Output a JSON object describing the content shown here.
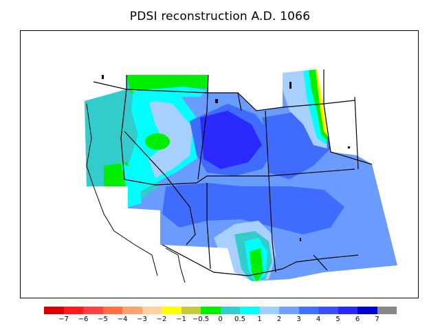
{
  "title": "PDSI reconstruction A.D. 1066",
  "colorbar": {
    "colors": [
      "#d80000",
      "#ff1a1a",
      "#ff4040",
      "#ff7040",
      "#ffa070",
      "#ffd0a0",
      "#ffff00",
      "#c8c83c",
      "#00ee00",
      "#33cccc",
      "#00ffff",
      "#9fcfff",
      "#6fa0ff",
      "#4070ff",
      "#3a50ff",
      "#2828ff",
      "#0000cc",
      "#888888"
    ],
    "tick_labels": [
      "−7",
      "−6",
      "−5",
      "−4",
      "−3",
      "−2",
      "−1",
      "−0.5",
      "0",
      "0.5",
      "1",
      "2",
      "3",
      "4",
      "5",
      "6",
      "7"
    ]
  },
  "legend_colors": {
    "wet_strong": "#2a2aff",
    "wet_mid": "#3f6cff",
    "wet_light": "#6a9bff",
    "wet_pale": "#a7d0ff",
    "near_zero": "#00ffff",
    "slightly_dry": "#33cccc",
    "dry_green": "#00ee00",
    "dry_yellow": "#ffff00"
  }
}
